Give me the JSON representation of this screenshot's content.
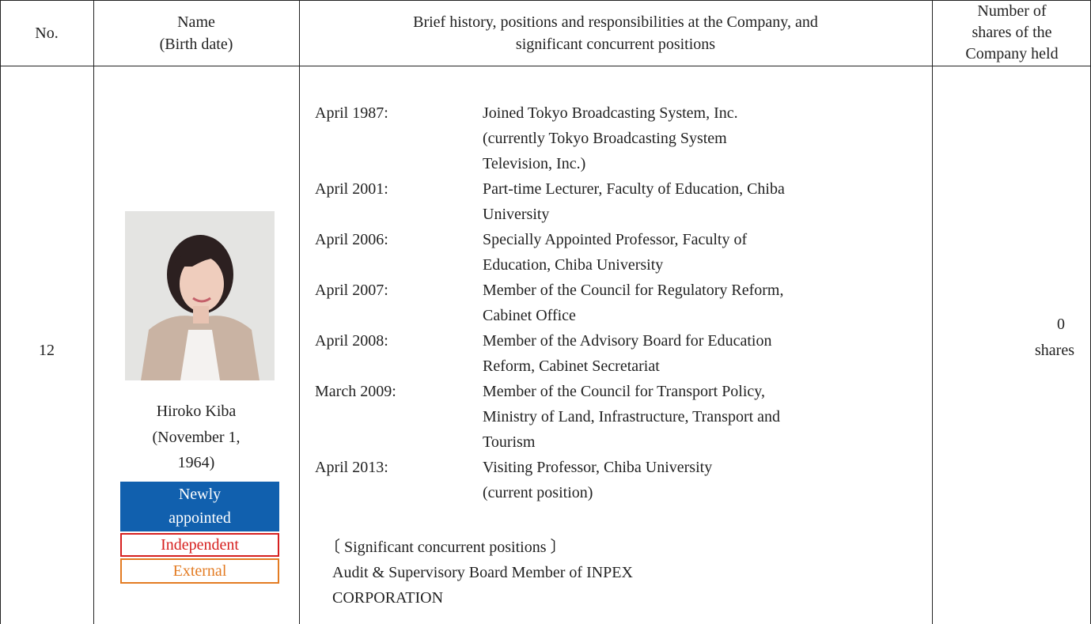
{
  "header": {
    "no": "No.",
    "name": [
      "Name",
      "(Birth date)"
    ],
    "history": [
      "Brief history, positions and responsibilities at the Company, and",
      "significant concurrent positions"
    ],
    "shares": [
      "Number of",
      "shares of the",
      "Company held"
    ]
  },
  "row": {
    "no": "12",
    "name": [
      "Hiroko Kiba",
      "(November 1,",
      "1964)"
    ],
    "badges": {
      "new": [
        "Newly",
        "appointed"
      ],
      "independent": "Independent",
      "external": "External"
    },
    "history": [
      {
        "date": "April 1987:",
        "lines": [
          "Joined Tokyo Broadcasting System, Inc.",
          "(currently Tokyo Broadcasting System",
          "Television, Inc.)"
        ]
      },
      {
        "date": "April 2001:",
        "lines": [
          "Part-time Lecturer, Faculty of Education, Chiba",
          "University"
        ]
      },
      {
        "date": "April 2006:",
        "lines": [
          "Specially Appointed Professor, Faculty of",
          "Education, Chiba University"
        ]
      },
      {
        "date": "April 2007:",
        "lines": [
          "Member of the Council for Regulatory Reform,",
          "Cabinet Office"
        ]
      },
      {
        "date": "April 2008:",
        "lines": [
          "Member of the Advisory Board for Education",
          "Reform, Cabinet Secretariat"
        ]
      },
      {
        "date": "March 2009:",
        "lines": [
          "Member of the Council for Transport Policy,",
          "Ministry of Land, Infrastructure, Transport and",
          "Tourism"
        ]
      },
      {
        "date": "April 2013:",
        "lines": [
          "Visiting Professor, Chiba University",
          "(current position)"
        ]
      }
    ],
    "concurrent_heading": "〔 Significant concurrent positions 〕",
    "concurrent": [
      "Audit & Supervisory Board Member of INPEX",
      "CORPORATION"
    ],
    "shares": [
      "0",
      "shares"
    ]
  }
}
